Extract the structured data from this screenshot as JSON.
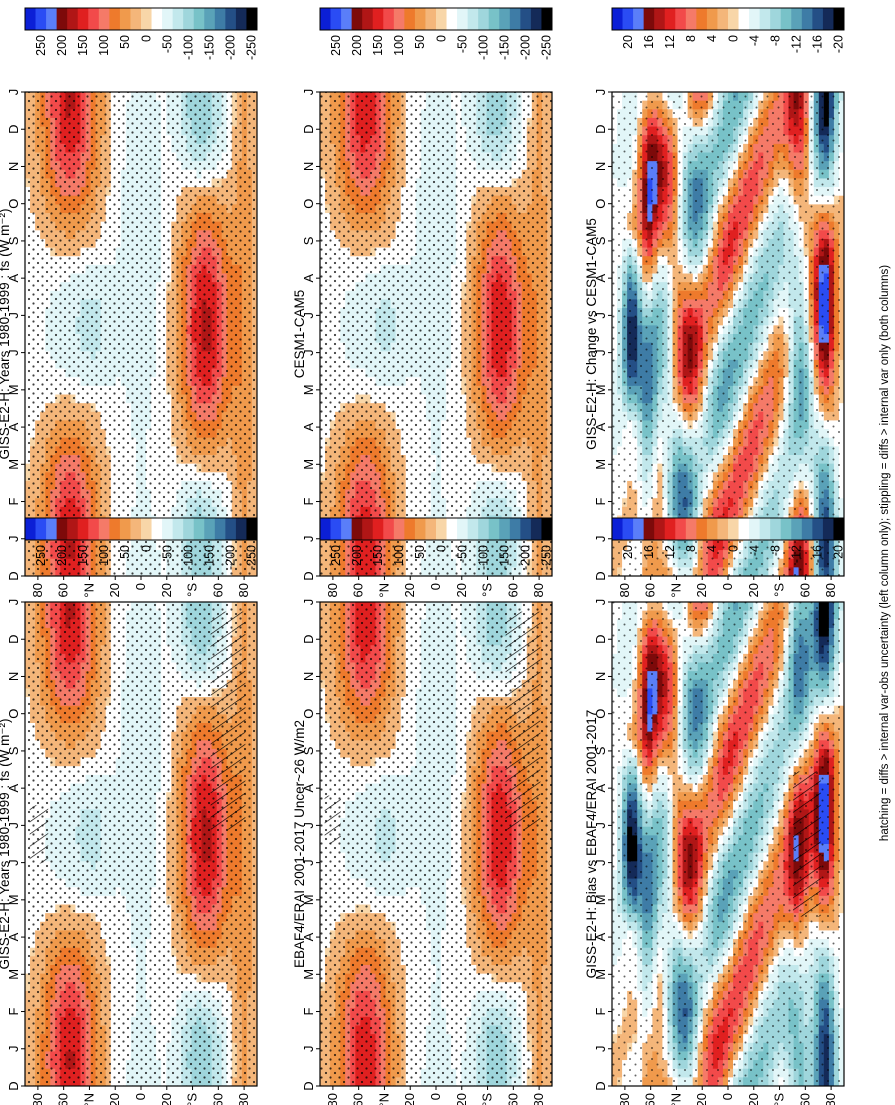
{
  "footer": "hatching = diffs > internal var-obs uncertainty (left column only); stippling = diffs > internal var only (both columns)",
  "chart_data": [
    {
      "type": "heatmap",
      "panel": "top-left",
      "title": "GISS-E2-H: Years 1980-1999 : fs (W m⁻²)",
      "colorbar": "abs",
      "month_ticks": [
        "D",
        "J",
        "F",
        "M",
        "A",
        "M",
        "J",
        "J",
        "A",
        "S",
        "O",
        "N",
        "D",
        "J"
      ],
      "lat_ticks": [
        "80",
        "60",
        "°N",
        "20",
        "0",
        "20",
        "°S",
        "60",
        "80"
      ],
      "lat_range": [
        -90,
        90
      ],
      "data_kind": "abs",
      "stipple": "heavy",
      "hatch": [
        "south-summer",
        "north-june-lower"
      ]
    },
    {
      "type": "heatmap",
      "panel": "top-right",
      "title": "GISS-E2-H: Years 1980-1999 : fs (W m⁻²)",
      "colorbar": "abs",
      "month_ticks": [
        "D",
        "J",
        "F",
        "M",
        "A",
        "M",
        "J",
        "J",
        "A",
        "S",
        "O",
        "N",
        "D",
        "J"
      ],
      "lat_ticks": [
        "80",
        "60",
        "°N",
        "20",
        "0",
        "20",
        "°S",
        "60",
        "80"
      ],
      "lat_range": [
        -90,
        90
      ],
      "data_kind": "abs",
      "stipple": "heavy",
      "hatch": []
    },
    {
      "type": "heatmap",
      "panel": "middle-left",
      "title": "EBAF4/ERAI 2001-2017 Uncer~26 W/m2",
      "colorbar": "abs",
      "month_ticks": [
        "D",
        "J",
        "F",
        "M",
        "A",
        "M",
        "J",
        "J",
        "A",
        "S",
        "O",
        "N",
        "D",
        "J"
      ],
      "lat_ticks": [
        "80",
        "60",
        "°N",
        "20",
        "0",
        "20",
        "°S",
        "60",
        "80"
      ],
      "lat_range": [
        -90,
        90
      ],
      "data_kind": "abs",
      "stipple": "heavy",
      "hatch": [
        "south-summer",
        "north-june-top"
      ]
    },
    {
      "type": "heatmap",
      "panel": "middle-right",
      "title": "CESM1-CAM5",
      "colorbar": "abs",
      "month_ticks": [
        "D",
        "J",
        "F",
        "M",
        "A",
        "M",
        "J",
        "J",
        "A",
        "S",
        "O",
        "N",
        "D",
        "J"
      ],
      "lat_ticks": [
        "80",
        "60",
        "°N",
        "20",
        "0",
        "20",
        "°S",
        "60",
        "80"
      ],
      "lat_range": [
        -90,
        90
      ],
      "data_kind": "abs",
      "stipple": "heavy",
      "hatch": []
    },
    {
      "type": "heatmap",
      "panel": "bottom-left",
      "title": "GISS-E2-H: Bias vs EBAF4/ERAI 2001-2017",
      "colorbar": "diff",
      "month_ticks": [
        "D",
        "J",
        "F",
        "M",
        "A",
        "M",
        "J",
        "J",
        "A",
        "S",
        "O",
        "N",
        "D",
        "J"
      ],
      "lat_ticks": [
        "80",
        "60",
        "°N",
        "20",
        "0",
        "20",
        "°S",
        "60",
        "80"
      ],
      "lat_range": [
        -90,
        90
      ],
      "data_kind": "bias",
      "stipple": "medium",
      "hatch": [
        "south-winter"
      ]
    },
    {
      "type": "heatmap",
      "panel": "bottom-right",
      "title": "GISS-E2-H: Change vs CESM1-CAM5",
      "colorbar": "diff",
      "month_ticks": [
        "D",
        "J",
        "F",
        "M",
        "A",
        "M",
        "J",
        "J",
        "A",
        "S",
        "O",
        "N",
        "D",
        "J"
      ],
      "lat_ticks": [
        "80",
        "60",
        "°N",
        "20",
        "0",
        "20",
        "°S",
        "60",
        "80"
      ],
      "lat_range": [
        -90,
        90
      ],
      "data_kind": "change",
      "stipple": "medium",
      "hatch": []
    }
  ],
  "colorbars": {
    "abs": {
      "labels": [
        "250",
        "200",
        "150",
        "100",
        "50",
        "0",
        "-50",
        "-100",
        "-150",
        "-200",
        "-250"
      ],
      "colors": [
        "#0b1fd6",
        "#2a4cf4",
        "#5a7ef9",
        "#7d0a0a",
        "#b01616",
        "#e02020",
        "#f24a4a",
        "#f57a68",
        "#ee7a2c",
        "#f09a4c",
        "#f4b67a",
        "#f8d6a8",
        "#ffffff",
        "#e2f6f8",
        "#c2e8ec",
        "#9fd6dc",
        "#78c2c8",
        "#5aa2b8",
        "#3e7ca6",
        "#244f86",
        "#142a58",
        "#000000"
      ]
    },
    "diff": {
      "labels": [
        "20",
        "16",
        "12",
        "8",
        "4",
        "0",
        "-4",
        "-8",
        "-12",
        "-16",
        "-20"
      ],
      "colors": [
        "#0b1fd6",
        "#2a4cf4",
        "#5a7ef9",
        "#7d0a0a",
        "#b01616",
        "#e02020",
        "#f24a4a",
        "#f57a68",
        "#ee7a2c",
        "#f09a4c",
        "#f4b67a",
        "#f8d6a8",
        "#ffffff",
        "#e2f6f8",
        "#c2e8ec",
        "#9fd6dc",
        "#78c2c8",
        "#5aa2b8",
        "#3e7ca6",
        "#244f86",
        "#142a58",
        "#000000"
      ]
    }
  }
}
